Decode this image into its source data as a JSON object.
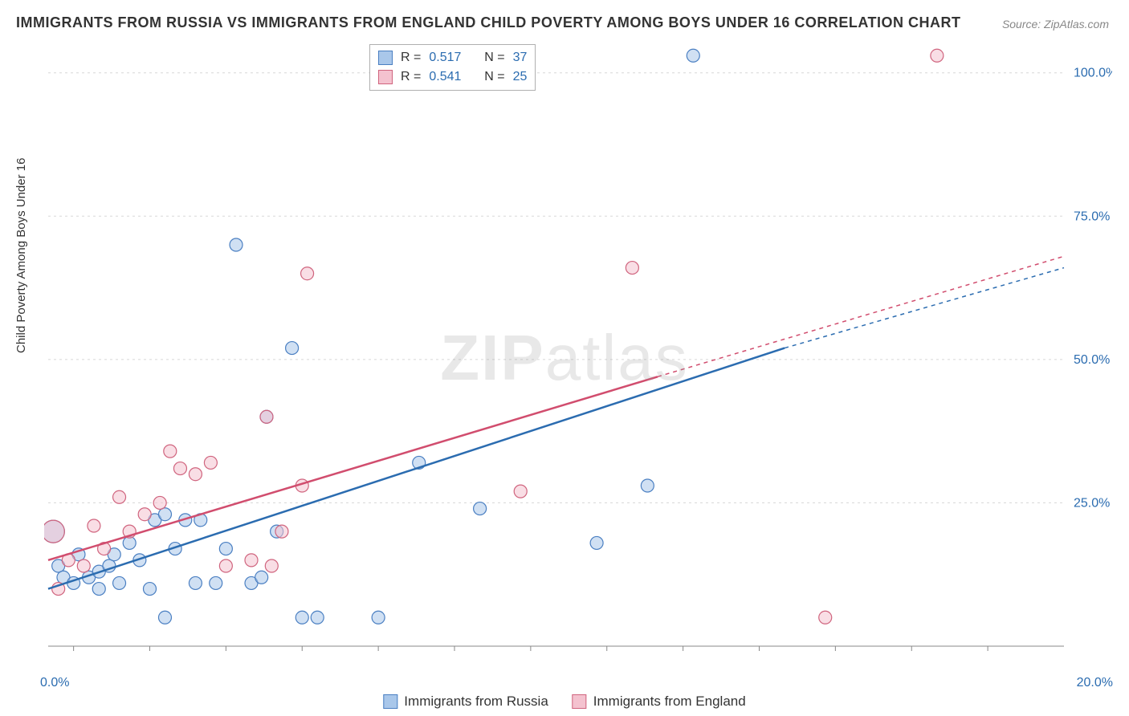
{
  "title": "IMMIGRANTS FROM RUSSIA VS IMMIGRANTS FROM ENGLAND CHILD POVERTY AMONG BOYS UNDER 16 CORRELATION CHART",
  "source": "Source: ZipAtlas.com",
  "ylabel": "Child Poverty Among Boys Under 16",
  "watermark_bold": "ZIP",
  "watermark_light": "atlas",
  "chart": {
    "type": "scatter",
    "xlim": [
      0,
      20
    ],
    "ylim": [
      0,
      105
    ],
    "x_ticks": [
      0,
      20
    ],
    "x_tick_labels": [
      "0.0%",
      "20.0%"
    ],
    "y_ticks": [
      25,
      50,
      75,
      100
    ],
    "y_tick_labels": [
      "25.0%",
      "50.0%",
      "75.0%",
      "100.0%"
    ],
    "grid_color": "#d8d8d8",
    "axis_color": "#888888",
    "background": "#ffffff",
    "tick_positions_x": [
      0.5,
      2,
      3.5,
      5,
      6.5,
      8,
      9.5,
      11,
      12.5,
      14,
      15.5,
      17,
      18.5
    ],
    "marker_radius": 8,
    "marker_radius_large": 14,
    "series": [
      {
        "name": "Immigrants from Russia",
        "fill": "#a9c7ea",
        "fill_opacity": 0.55,
        "stroke": "#4a7fc2",
        "line_color": "#2b6cb0",
        "R": "0.517",
        "N": "37",
        "trend": {
          "x1": 0,
          "y1": 10,
          "x2": 20,
          "y2": 66
        },
        "dashed_end": {
          "x1": 14.5,
          "y1": 52,
          "x2": 20,
          "y2": 66
        },
        "points": [
          {
            "x": 0.1,
            "y": 20,
            "r": 14
          },
          {
            "x": 0.2,
            "y": 14
          },
          {
            "x": 0.3,
            "y": 12
          },
          {
            "x": 0.5,
            "y": 11
          },
          {
            "x": 0.6,
            "y": 16
          },
          {
            "x": 0.8,
            "y": 12
          },
          {
            "x": 1.0,
            "y": 10
          },
          {
            "x": 1.0,
            "y": 13
          },
          {
            "x": 1.2,
            "y": 14
          },
          {
            "x": 1.3,
            "y": 16
          },
          {
            "x": 1.4,
            "y": 11
          },
          {
            "x": 1.6,
            "y": 18
          },
          {
            "x": 1.8,
            "y": 15
          },
          {
            "x": 2.0,
            "y": 10
          },
          {
            "x": 2.1,
            "y": 22
          },
          {
            "x": 2.3,
            "y": 23
          },
          {
            "x": 2.3,
            "y": 5
          },
          {
            "x": 2.5,
            "y": 17
          },
          {
            "x": 2.7,
            "y": 22
          },
          {
            "x": 2.9,
            "y": 11
          },
          {
            "x": 3.0,
            "y": 22
          },
          {
            "x": 3.3,
            "y": 11
          },
          {
            "x": 3.5,
            "y": 17
          },
          {
            "x": 3.7,
            "y": 70
          },
          {
            "x": 4.0,
            "y": 11
          },
          {
            "x": 4.2,
            "y": 12
          },
          {
            "x": 4.3,
            "y": 40
          },
          {
            "x": 4.5,
            "y": 20
          },
          {
            "x": 4.8,
            "y": 52
          },
          {
            "x": 5.0,
            "y": 5
          },
          {
            "x": 5.3,
            "y": 5
          },
          {
            "x": 6.5,
            "y": 5
          },
          {
            "x": 7.3,
            "y": 32
          },
          {
            "x": 8.5,
            "y": 24
          },
          {
            "x": 10.8,
            "y": 18
          },
          {
            "x": 11.8,
            "y": 28
          },
          {
            "x": 12.7,
            "y": 103
          }
        ]
      },
      {
        "name": "Immigrants from England",
        "fill": "#f4c2cf",
        "fill_opacity": 0.55,
        "stroke": "#d0647e",
        "line_color": "#d14d6e",
        "R": "0.541",
        "N": "25",
        "trend": {
          "x1": 0,
          "y1": 15,
          "x2": 20,
          "y2": 68
        },
        "dashed_end": {
          "x1": 12,
          "y1": 47,
          "x2": 20,
          "y2": 68
        },
        "points": [
          {
            "x": 0.1,
            "y": 20,
            "r": 14
          },
          {
            "x": 0.2,
            "y": 10
          },
          {
            "x": 0.4,
            "y": 15
          },
          {
            "x": 0.7,
            "y": 14
          },
          {
            "x": 0.9,
            "y": 21
          },
          {
            "x": 1.1,
            "y": 17
          },
          {
            "x": 1.4,
            "y": 26
          },
          {
            "x": 1.6,
            "y": 20
          },
          {
            "x": 1.9,
            "y": 23
          },
          {
            "x": 2.2,
            "y": 25
          },
          {
            "x": 2.4,
            "y": 34
          },
          {
            "x": 2.6,
            "y": 31
          },
          {
            "x": 2.9,
            "y": 30
          },
          {
            "x": 3.2,
            "y": 32
          },
          {
            "x": 3.5,
            "y": 14
          },
          {
            "x": 4.0,
            "y": 15
          },
          {
            "x": 4.3,
            "y": 40
          },
          {
            "x": 4.4,
            "y": 14
          },
          {
            "x": 4.6,
            "y": 20
          },
          {
            "x": 5.0,
            "y": 28
          },
          {
            "x": 5.1,
            "y": 65
          },
          {
            "x": 9.3,
            "y": 27
          },
          {
            "x": 11.5,
            "y": 66
          },
          {
            "x": 15.3,
            "y": 5
          },
          {
            "x": 17.5,
            "y": 103
          }
        ]
      }
    ]
  },
  "bottom_legend": [
    {
      "label": "Immigrants from Russia"
    },
    {
      "label": "Immigrants from England"
    }
  ]
}
